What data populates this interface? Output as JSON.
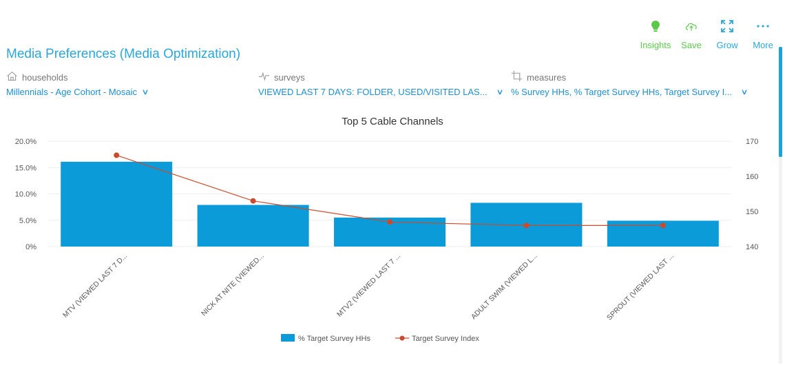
{
  "toolbar": {
    "items": [
      {
        "label": "Insights",
        "icon": "lightbulb-icon",
        "color": "#5cc84a"
      },
      {
        "label": "Save",
        "icon": "cloud-upload-icon",
        "color": "#5cc84a"
      },
      {
        "label": "Grow",
        "icon": "expand-icon",
        "color": "#2aa7d8"
      },
      {
        "label": "More",
        "icon": "more-dots-icon",
        "color": "#2aa7d8"
      }
    ]
  },
  "page": {
    "title": "Media Preferences (Media Optimization)"
  },
  "selectors": [
    {
      "label": "households",
      "icon": "house-icon",
      "value": "Millennials - Age Cohort - Mosaic"
    },
    {
      "label": "surveys",
      "icon": "pulse-icon",
      "value": "VIEWED LAST 7 DAYS: FOLDER, USED/VISITED LAS..."
    },
    {
      "label": "measures",
      "icon": "crop-icon",
      "value": "% Survey HHs, % Target Survey HHs, Target Survey I..."
    }
  ],
  "chart_data": {
    "type": "bar",
    "title": "Top 5 Cable Channels",
    "categories": [
      "MTV (VIEWED LAST 7 D...",
      "NICK AT NITE (VIEWED...",
      "MTV2 (VIEWED LAST 7 ...",
      "ADULT SWIM (VIEWED L...",
      "SPROUT (VIEWED LAST ..."
    ],
    "series": [
      {
        "name": "% Target Survey HHs",
        "type": "bar",
        "axis": "left",
        "values": [
          16.1,
          7.9,
          5.5,
          8.3,
          4.9
        ],
        "color": "#0a9bd8"
      },
      {
        "name": "Target Survey Index",
        "type": "line",
        "axis": "right",
        "values": [
          166,
          153,
          147,
          146,
          146
        ],
        "color": "#cc4a2c"
      }
    ],
    "y_left": {
      "ticks": [
        "20.0%",
        "15.0%",
        "10.0%",
        "5.0%",
        "0%"
      ],
      "range": [
        0,
        20
      ]
    },
    "y_right": {
      "ticks": [
        "170",
        "160",
        "150",
        "140"
      ],
      "range": [
        140,
        170
      ]
    },
    "grid": true,
    "legend": "bottom-center"
  }
}
